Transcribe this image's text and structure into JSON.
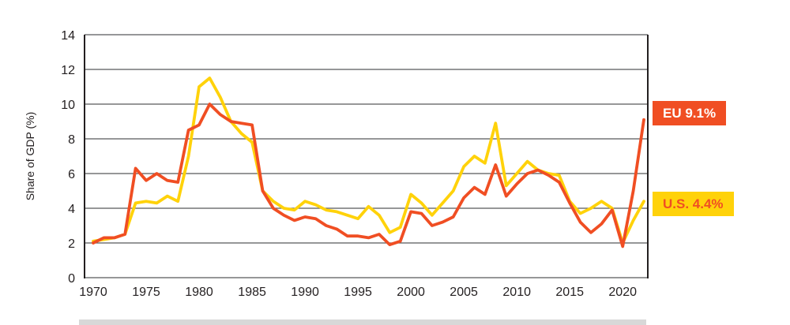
{
  "chart_data": {
    "type": "line",
    "title": "",
    "xlabel": "",
    "ylabel": "Share of GDP (%)",
    "ylim": [
      0,
      14
    ],
    "yticks": [
      0,
      2,
      4,
      6,
      8,
      10,
      12,
      14
    ],
    "xticks": [
      1970,
      1975,
      1980,
      1985,
      1990,
      1995,
      2000,
      2005,
      2010,
      2015,
      2020
    ],
    "x_range": [
      1970,
      2022
    ],
    "grid": "horizontal",
    "legend_position": "right-edge-badges",
    "years": [
      1970,
      1971,
      1972,
      1973,
      1974,
      1975,
      1976,
      1977,
      1978,
      1979,
      1980,
      1981,
      1982,
      1983,
      1984,
      1985,
      1986,
      1987,
      1988,
      1989,
      1990,
      1991,
      1992,
      1993,
      1994,
      1995,
      1996,
      1997,
      1998,
      1999,
      2000,
      2001,
      2002,
      2003,
      2004,
      2005,
      2006,
      2007,
      2008,
      2009,
      2010,
      2011,
      2012,
      2013,
      2014,
      2015,
      2016,
      2017,
      2018,
      2019,
      2020,
      2021,
      2022
    ],
    "series": [
      {
        "name": "EU",
        "color": "#f04e23",
        "end_label": "EU 9.1%",
        "end_value": 9.1,
        "values": [
          2.0,
          2.3,
          2.3,
          2.5,
          6.3,
          5.6,
          6.0,
          5.6,
          5.5,
          8.5,
          8.8,
          10.0,
          9.4,
          9.0,
          8.9,
          8.8,
          5.0,
          4.0,
          3.6,
          3.3,
          3.5,
          3.4,
          3.0,
          2.8,
          2.4,
          2.4,
          2.3,
          2.5,
          1.9,
          2.1,
          3.8,
          3.7,
          3.0,
          3.2,
          3.5,
          4.6,
          5.2,
          4.8,
          6.5,
          4.7,
          5.4,
          6.0,
          6.2,
          5.9,
          5.5,
          4.3,
          3.2,
          2.6,
          3.1,
          3.9,
          1.8,
          5.0,
          9.1
        ]
      },
      {
        "name": "U.S.",
        "color": "#ffd20a",
        "end_label": "U.S. 4.4%",
        "end_value": 4.4,
        "values": [
          2.1,
          2.2,
          2.3,
          2.5,
          4.3,
          4.4,
          4.3,
          4.7,
          4.4,
          7.0,
          11.0,
          11.5,
          10.4,
          9.0,
          8.3,
          7.8,
          5.0,
          4.4,
          4.0,
          3.9,
          4.4,
          4.2,
          3.9,
          3.8,
          3.6,
          3.4,
          4.1,
          3.6,
          2.6,
          2.9,
          4.8,
          4.3,
          3.6,
          4.3,
          5.0,
          6.4,
          7.0,
          6.6,
          8.9,
          5.3,
          6.0,
          6.7,
          6.2,
          6.0,
          5.9,
          4.4,
          3.7,
          4.0,
          4.4,
          4.0,
          2.0,
          3.3,
          4.4
        ]
      }
    ]
  },
  "colors": {
    "eu_line": "#f04e23",
    "us_line": "#ffd20a",
    "eu_badge_bg": "#f04e23",
    "eu_badge_text": "#ffffff",
    "us_badge_bg": "#ffd20a",
    "us_badge_text": "#f04e23",
    "gridline": "#58595b",
    "axis_spine": "#231f20",
    "tick_text": "#231f20"
  }
}
